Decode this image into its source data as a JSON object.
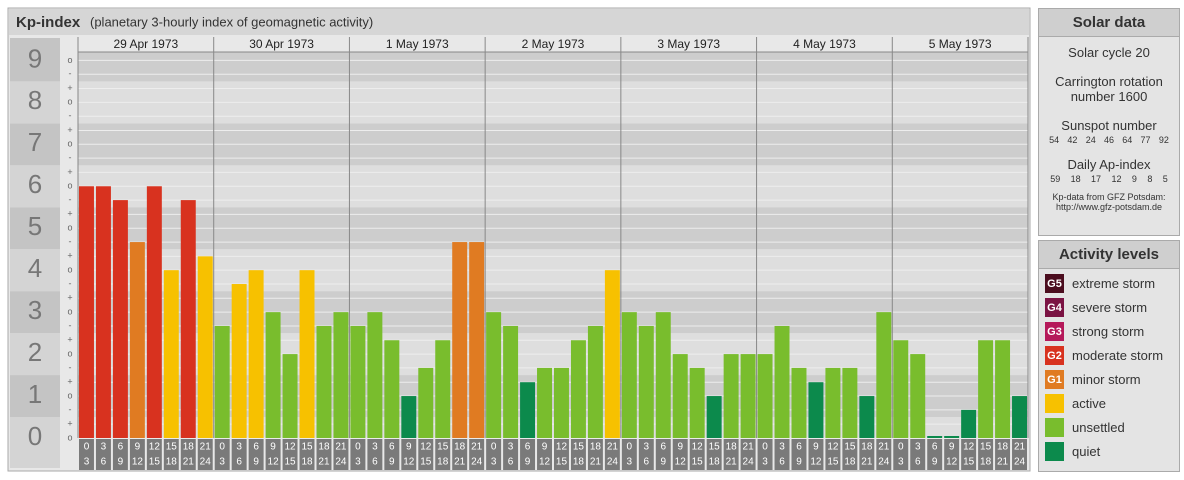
{
  "chart_data": {
    "type": "bar",
    "title": "Kp-index",
    "subtitle": "(planetary 3-hourly index of geomagnetic activity)",
    "days": [
      "29 Apr 1973",
      "30 Apr 1973",
      "1 May 1973",
      "2 May 1973",
      "3 May 1973",
      "4 May 1973",
      "5 May 1973"
    ],
    "slots": [
      [
        "0",
        "3"
      ],
      [
        "3",
        "6"
      ],
      [
        "6",
        "9"
      ],
      [
        "9",
        "12"
      ],
      [
        "12",
        "15"
      ],
      [
        "15",
        "18"
      ],
      [
        "18",
        "21"
      ],
      [
        "21",
        "24"
      ]
    ],
    "values": [
      6,
      6,
      5.67,
      4.67,
      6,
      4,
      5.67,
      4.33,
      2.67,
      3.67,
      4,
      3,
      2,
      4,
      2.67,
      3,
      2.67,
      3,
      2.33,
      1,
      1.67,
      2.33,
      4.67,
      4.67,
      3,
      2.67,
      1.33,
      1.67,
      1.67,
      2.33,
      2.67,
      4,
      3,
      2.67,
      3,
      2,
      1.67,
      1,
      2,
      2,
      2,
      2.67,
      1.67,
      1.33,
      1.67,
      1.67,
      1,
      3,
      2.33,
      2,
      0,
      0,
      0.67,
      2.33,
      2.33,
      1
    ],
    "colors": [
      "#d8321f",
      "#d8321f",
      "#d8321f",
      "#e07b22",
      "#d8321f",
      "#f7c100",
      "#d8321f",
      "#f7c100",
      "#79bd2d",
      "#f7c100",
      "#f7c100",
      "#79bd2d",
      "#79bd2d",
      "#f7c100",
      "#79bd2d",
      "#79bd2d",
      "#79bd2d",
      "#79bd2d",
      "#79bd2d",
      "#0c8a4c",
      "#79bd2d",
      "#79bd2d",
      "#e07b22",
      "#e07b22",
      "#79bd2d",
      "#79bd2d",
      "#0c8a4c",
      "#79bd2d",
      "#79bd2d",
      "#79bd2d",
      "#79bd2d",
      "#f7c100",
      "#79bd2d",
      "#79bd2d",
      "#79bd2d",
      "#79bd2d",
      "#79bd2d",
      "#0c8a4c",
      "#79bd2d",
      "#79bd2d",
      "#79bd2d",
      "#79bd2d",
      "#79bd2d",
      "#0c8a4c",
      "#79bd2d",
      "#79bd2d",
      "#0c8a4c",
      "#79bd2d",
      "#79bd2d",
      "#79bd2d",
      "#0c8a4c",
      "#0c8a4c",
      "#0c8a4c",
      "#79bd2d",
      "#79bd2d",
      "#0c8a4c"
    ],
    "ylim": [
      0,
      9.2
    ],
    "yticks": [
      0,
      1,
      2,
      3,
      4,
      5,
      6,
      7,
      8,
      9
    ],
    "yminorticks": [
      {
        "value": 0,
        "label": "o"
      },
      {
        "value": 0.33,
        "label": "+"
      },
      {
        "value": 0.67,
        "label": "-"
      },
      {
        "value": 1,
        "label": "o"
      },
      {
        "value": 1.33,
        "label": "+"
      },
      {
        "value": 1.67,
        "label": "-"
      },
      {
        "value": 2,
        "label": "o"
      },
      {
        "value": 2.33,
        "label": "+"
      },
      {
        "value": 2.67,
        "label": "-"
      },
      {
        "value": 3,
        "label": "o"
      },
      {
        "value": 3.33,
        "label": "+"
      },
      {
        "value": 3.67,
        "label": "-"
      },
      {
        "value": 4,
        "label": "o"
      },
      {
        "value": 4.33,
        "label": "+"
      },
      {
        "value": 4.67,
        "label": "-"
      },
      {
        "value": 5,
        "label": "o"
      },
      {
        "value": 5.33,
        "label": "+"
      },
      {
        "value": 5.67,
        "label": "-"
      },
      {
        "value": 6,
        "label": "o"
      },
      {
        "value": 6.33,
        "label": "+"
      },
      {
        "value": 6.67,
        "label": "-"
      },
      {
        "value": 7,
        "label": "o"
      },
      {
        "value": 7.33,
        "label": "+"
      },
      {
        "value": 7.67,
        "label": "-"
      },
      {
        "value": 8,
        "label": "o"
      },
      {
        "value": 8.33,
        "label": "+"
      },
      {
        "value": 8.67,
        "label": "-"
      },
      {
        "value": 9,
        "label": "o"
      }
    ],
    "grid": true
  },
  "solar_data": {
    "title": "Solar data",
    "cycle": "Solar cycle 20",
    "carrington": "Carrington rotation number 1600",
    "sunspot_title": "Sunspot number",
    "sunspot": [
      54,
      42,
      24,
      46,
      64,
      77,
      92
    ],
    "ap_title": "Daily Ap-index",
    "ap": [
      59,
      18,
      17,
      12,
      9,
      8,
      5
    ],
    "source": "Kp-data from GFZ Potsdam:",
    "url": "http://www.gfz-potsdam.de"
  },
  "activity_levels": {
    "title": "Activity levels",
    "items": [
      {
        "badge": "G5",
        "label": "extreme storm",
        "color": "#4b0d1e"
      },
      {
        "badge": "G4",
        "label": "severe storm",
        "color": "#7b1343"
      },
      {
        "badge": "G3",
        "label": "strong storm",
        "color": "#b5195a"
      },
      {
        "badge": "G2",
        "label": "moderate storm",
        "color": "#d8321f"
      },
      {
        "badge": "G1",
        "label": "minor storm",
        "color": "#e07b22"
      },
      {
        "badge": null,
        "label": "active",
        "color": "#f7c100"
      },
      {
        "badge": null,
        "label": "unsettled",
        "color": "#79bd2d"
      },
      {
        "badge": null,
        "label": "quiet",
        "color": "#0c8a4c"
      }
    ]
  }
}
